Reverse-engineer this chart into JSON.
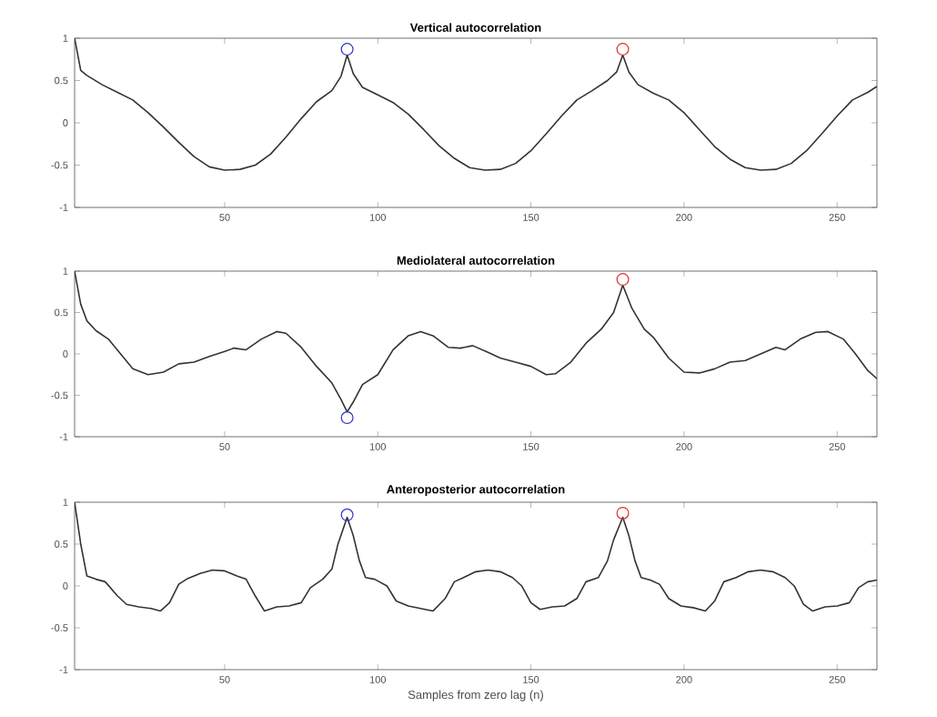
{
  "chart_data": [
    {
      "type": "line",
      "title": "Vertical autocorrelation",
      "xlim": [
        1,
        263
      ],
      "ylim": [
        -1,
        1
      ],
      "xticks": [
        50,
        100,
        150,
        200,
        250
      ],
      "yticks": [
        -1,
        -0.5,
        0,
        0.5,
        1
      ],
      "series": [
        {
          "type": "line",
          "color": "#333333",
          "x": [
            1,
            3,
            5,
            10,
            15,
            20,
            25,
            30,
            35,
            40,
            45,
            50,
            55,
            60,
            65,
            70,
            75,
            80,
            85,
            88,
            90,
            92,
            95,
            100,
            105,
            110,
            115,
            120,
            125,
            130,
            135,
            140,
            145,
            150,
            155,
            160,
            165,
            170,
            175,
            178,
            180,
            182,
            185,
            190,
            195,
            200,
            205,
            210,
            215,
            220,
            225,
            230,
            235,
            240,
            245,
            250,
            255,
            260,
            263
          ],
          "values": [
            1.0,
            0.62,
            0.56,
            0.45,
            0.36,
            0.27,
            0.12,
            -0.05,
            -0.23,
            -0.4,
            -0.52,
            -0.56,
            -0.55,
            -0.5,
            -0.37,
            -0.17,
            0.05,
            0.25,
            0.38,
            0.55,
            0.8,
            0.58,
            0.42,
            0.33,
            0.24,
            0.1,
            -0.08,
            -0.27,
            -0.42,
            -0.53,
            -0.56,
            -0.55,
            -0.48,
            -0.33,
            -0.13,
            0.08,
            0.27,
            0.38,
            0.5,
            0.6,
            0.8,
            0.6,
            0.45,
            0.35,
            0.27,
            0.12,
            -0.08,
            -0.28,
            -0.43,
            -0.53,
            -0.56,
            -0.55,
            -0.48,
            -0.33,
            -0.13,
            0.08,
            0.27,
            0.36,
            0.43
          ]
        },
        {
          "type": "scatter",
          "marker": "circle",
          "color": "#3333cc",
          "x": [
            90
          ],
          "values": [
            0.87
          ]
        },
        {
          "type": "scatter",
          "marker": "circle",
          "color": "#e03030",
          "x": [
            180
          ],
          "values": [
            0.87
          ]
        }
      ]
    },
    {
      "type": "line",
      "title": "Mediolateral autocorrelation",
      "xlim": [
        1,
        263
      ],
      "ylim": [
        -1,
        1
      ],
      "xticks": [
        50,
        100,
        150,
        200,
        250
      ],
      "yticks": [
        -1,
        -0.5,
        0,
        0.5,
        1
      ],
      "series": [
        {
          "type": "line",
          "color": "#333333",
          "x": [
            1,
            3,
            5,
            8,
            12,
            16,
            20,
            25,
            30,
            35,
            40,
            45,
            50,
            53,
            57,
            62,
            67,
            70,
            75,
            80,
            85,
            88,
            90,
            92,
            95,
            100,
            105,
            110,
            114,
            118,
            123,
            127,
            131,
            136,
            140,
            145,
            150,
            155,
            158,
            163,
            168,
            173,
            177,
            180,
            183,
            187,
            190,
            195,
            200,
            205,
            210,
            215,
            220,
            225,
            230,
            233,
            238,
            243,
            247,
            252,
            256,
            260,
            263
          ],
          "values": [
            1.0,
            0.6,
            0.4,
            0.28,
            0.18,
            0.0,
            -0.18,
            -0.25,
            -0.22,
            -0.12,
            -0.1,
            -0.03,
            0.03,
            0.07,
            0.05,
            0.18,
            0.27,
            0.25,
            0.08,
            -0.15,
            -0.35,
            -0.55,
            -0.7,
            -0.58,
            -0.37,
            -0.25,
            0.05,
            0.22,
            0.27,
            0.22,
            0.08,
            0.07,
            0.1,
            0.02,
            -0.05,
            -0.1,
            -0.15,
            -0.25,
            -0.24,
            -0.1,
            0.13,
            0.3,
            0.5,
            0.83,
            0.55,
            0.3,
            0.2,
            -0.05,
            -0.22,
            -0.23,
            -0.18,
            -0.1,
            -0.08,
            0.0,
            0.08,
            0.05,
            0.18,
            0.26,
            0.27,
            0.18,
            0.0,
            -0.2,
            -0.3
          ]
        },
        {
          "type": "scatter",
          "marker": "circle",
          "color": "#e03030",
          "x": [
            180
          ],
          "values": [
            0.9
          ]
        },
        {
          "type": "scatter",
          "marker": "circle",
          "color": "#3333cc",
          "x": [
            90
          ],
          "values": [
            -0.77
          ]
        }
      ]
    },
    {
      "type": "line",
      "title": "Anteroposterior autocorrelation",
      "xlabel": "Samples from zero lag (n)",
      "xlim": [
        1,
        263
      ],
      "ylim": [
        -1,
        1
      ],
      "xticks": [
        50,
        100,
        150,
        200,
        250
      ],
      "yticks": [
        -1,
        -0.5,
        0,
        0.5,
        1
      ],
      "series": [
        {
          "type": "line",
          "color": "#333333",
          "x": [
            1,
            3,
            5,
            8,
            11,
            15,
            18,
            22,
            26,
            29,
            32,
            35,
            38,
            42,
            46,
            50,
            54,
            57,
            60,
            63,
            67,
            71,
            75,
            78,
            82,
            85,
            87,
            90,
            92,
            94,
            96,
            99,
            103,
            106,
            110,
            114,
            118,
            122,
            125,
            128,
            132,
            136,
            140,
            144,
            147,
            150,
            153,
            157,
            161,
            165,
            168,
            172,
            175,
            177,
            180,
            182,
            184,
            186,
            189,
            192,
            195,
            199,
            203,
            207,
            210,
            213,
            217,
            221,
            225,
            229,
            233,
            236,
            239,
            242,
            246,
            250,
            254,
            257,
            260,
            263
          ],
          "values": [
            1.0,
            0.5,
            0.12,
            0.08,
            0.05,
            -0.12,
            -0.22,
            -0.25,
            -0.27,
            -0.3,
            -0.2,
            0.02,
            0.09,
            0.15,
            0.19,
            0.18,
            0.12,
            0.08,
            -0.12,
            -0.3,
            -0.25,
            -0.24,
            -0.2,
            -0.02,
            0.08,
            0.2,
            0.5,
            0.82,
            0.6,
            0.3,
            0.1,
            0.08,
            0.0,
            -0.18,
            -0.24,
            -0.27,
            -0.3,
            -0.15,
            0.05,
            0.1,
            0.17,
            0.19,
            0.17,
            0.1,
            0.0,
            -0.2,
            -0.28,
            -0.25,
            -0.24,
            -0.15,
            0.05,
            0.1,
            0.3,
            0.55,
            0.82,
            0.6,
            0.3,
            0.1,
            0.07,
            0.02,
            -0.15,
            -0.24,
            -0.26,
            -0.3,
            -0.18,
            0.05,
            0.1,
            0.17,
            0.19,
            0.17,
            0.1,
            0.0,
            -0.22,
            -0.3,
            -0.25,
            -0.24,
            -0.2,
            -0.02,
            0.05,
            0.07
          ]
        },
        {
          "type": "scatter",
          "marker": "circle",
          "color": "#3333cc",
          "x": [
            90
          ],
          "values": [
            0.85
          ]
        },
        {
          "type": "scatter",
          "marker": "circle",
          "color": "#e03030",
          "x": [
            180
          ],
          "values": [
            0.87
          ]
        }
      ]
    }
  ]
}
